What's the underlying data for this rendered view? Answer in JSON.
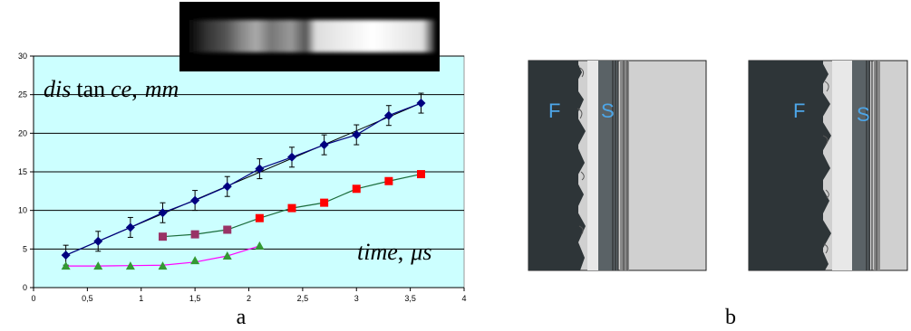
{
  "panels": {
    "a": {
      "label": "a"
    },
    "b": {
      "label": "b",
      "left_letters": [
        "F",
        "S"
      ],
      "right_letters": [
        "F",
        "S"
      ]
    }
  },
  "colors": {
    "plot_bg": "#ccffff",
    "diamond": "#000080",
    "square_purple": "#993366",
    "square_red": "#ff0000",
    "triangle": "#339933",
    "pink_curve": "#ff00ff",
    "letter_blue": "#4da6e8",
    "dark_region": "#2e3538",
    "light_region": "#d0d0d0",
    "mid_gray": "#888888"
  },
  "chart_data": {
    "type": "line",
    "title": "",
    "ylabel_parts": [
      "dis",
      "tan",
      "ce",
      "mm"
    ],
    "xlabel_parts": [
      "time",
      "μs"
    ],
    "xlim": [
      0,
      4
    ],
    "ylim": [
      0,
      30
    ],
    "x_ticks": [
      "0",
      "0,5",
      "1",
      "1,5",
      "2",
      "2,5",
      "3",
      "3,5",
      "4"
    ],
    "y_ticks": [
      "0",
      "5",
      "10",
      "15",
      "20",
      "25",
      "30"
    ],
    "grid": "horizontal",
    "series": [
      {
        "marker": "diamond",
        "color": "#000080",
        "error_bars": true,
        "x": [
          0.3,
          0.6,
          0.9,
          1.2,
          1.5,
          1.8,
          2.1,
          2.4,
          2.7,
          3.0,
          3.3,
          3.6
        ],
        "y": [
          4.2,
          6.0,
          7.8,
          9.7,
          11.3,
          13.1,
          15.4,
          16.9,
          18.5,
          19.8,
          22.3,
          23.9
        ]
      },
      {
        "marker": "square",
        "color": "#993366",
        "x": [
          1.2,
          1.5,
          1.8
        ],
        "y": [
          6.6,
          6.9,
          7.5
        ]
      },
      {
        "marker": "square",
        "color": "#ff0000",
        "x": [
          2.1,
          2.4,
          2.7,
          3.0,
          3.3,
          3.6
        ],
        "y": [
          9.0,
          10.3,
          11.0,
          12.8,
          13.8,
          14.7
        ]
      },
      {
        "marker": "triangle",
        "color": "#339933",
        "x": [
          0.3,
          0.6,
          0.9,
          1.2,
          1.5,
          1.8,
          2.1
        ],
        "y": [
          2.8,
          2.8,
          2.8,
          2.8,
          3.5,
          4.1,
          5.4
        ]
      }
    ]
  }
}
